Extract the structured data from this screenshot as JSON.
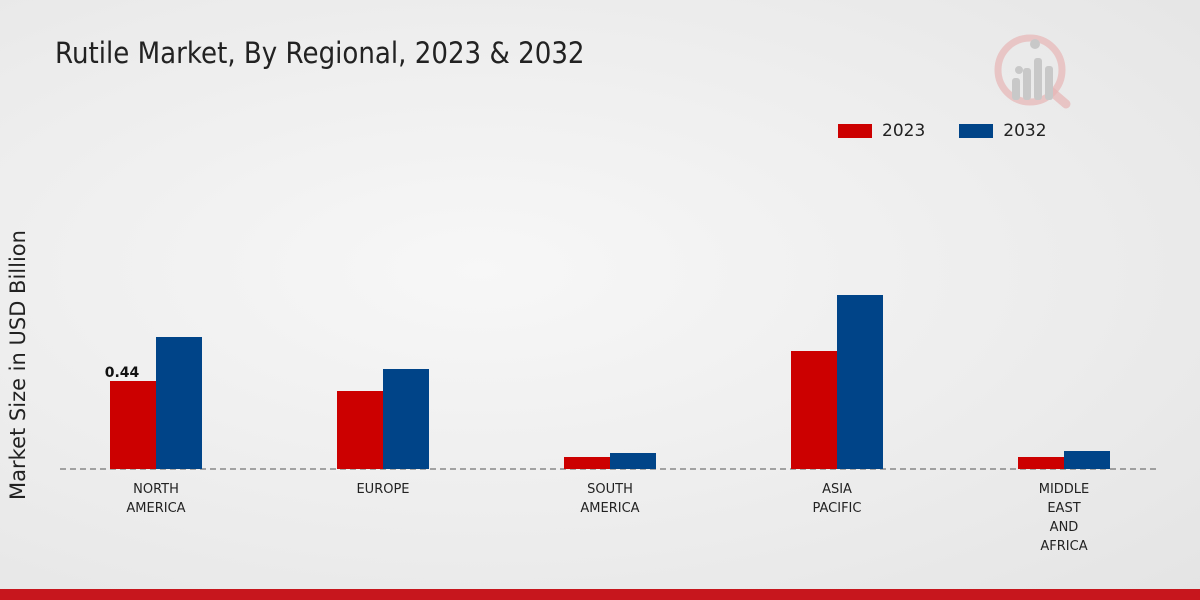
{
  "colors": {
    "series_2023": "#cc0000",
    "series_2032": "#004488",
    "footer": "#c7161d"
  },
  "chart_data": {
    "type": "bar",
    "title": "Rutile Market, By Regional, 2023 & 2032",
    "xlabel": "",
    "ylabel": "Market Size in USD Billion",
    "categories": [
      [
        "NORTH",
        "AMERICA"
      ],
      [
        "EUROPE"
      ],
      [
        "SOUTH",
        "AMERICA"
      ],
      [
        "ASIA",
        "PACIFIC"
      ],
      [
        "MIDDLE",
        "EAST",
        "AND",
        "AFRICA"
      ]
    ],
    "series": [
      {
        "name": "2023",
        "values": [
          0.44,
          0.39,
          0.06,
          0.59,
          0.06
        ]
      },
      {
        "name": "2032",
        "values": [
          0.66,
          0.5,
          0.08,
          0.87,
          0.09
        ]
      }
    ],
    "data_labels": [
      {
        "series": 0,
        "index": 0,
        "text": "0.44"
      }
    ],
    "ylim": [
      0,
      1.2
    ],
    "legend_position": "top-right",
    "grid": false
  },
  "icons": {
    "watermark": "market-research-logo-icon"
  }
}
